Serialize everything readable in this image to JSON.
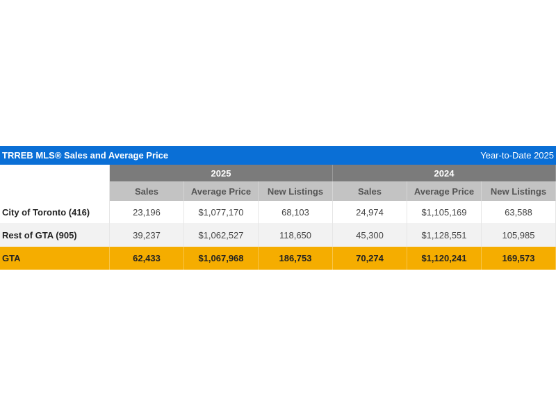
{
  "title": "TRREB MLS® Sales and Average Price",
  "period": "Year-to-Date 2025",
  "years": [
    "2025",
    "2024"
  ],
  "columns": [
    "Sales",
    "Average Price",
    "New Listings",
    "Sales",
    "Average Price",
    "New Listings"
  ],
  "rows": [
    {
      "label": "City of Toronto (416)",
      "values": [
        "23,196",
        "$1,077,170",
        "68,103",
        "24,974",
        "$1,105,169",
        "63,588"
      ]
    },
    {
      "label": "Rest of GTA (905)",
      "values": [
        "39,237",
        "$1,062,527",
        "118,650",
        "45,300",
        "$1,128,551",
        "105,985"
      ]
    },
    {
      "label": "GTA",
      "values": [
        "62,433",
        "$1,067,968",
        "186,753",
        "70,274",
        "$1,120,241",
        "169,573"
      ]
    }
  ],
  "colors": {
    "title_bar": "#0a6fd6",
    "year_header": "#7b7b7b",
    "column_header": "#c3c3c3",
    "total_row": "#f5ad00"
  }
}
